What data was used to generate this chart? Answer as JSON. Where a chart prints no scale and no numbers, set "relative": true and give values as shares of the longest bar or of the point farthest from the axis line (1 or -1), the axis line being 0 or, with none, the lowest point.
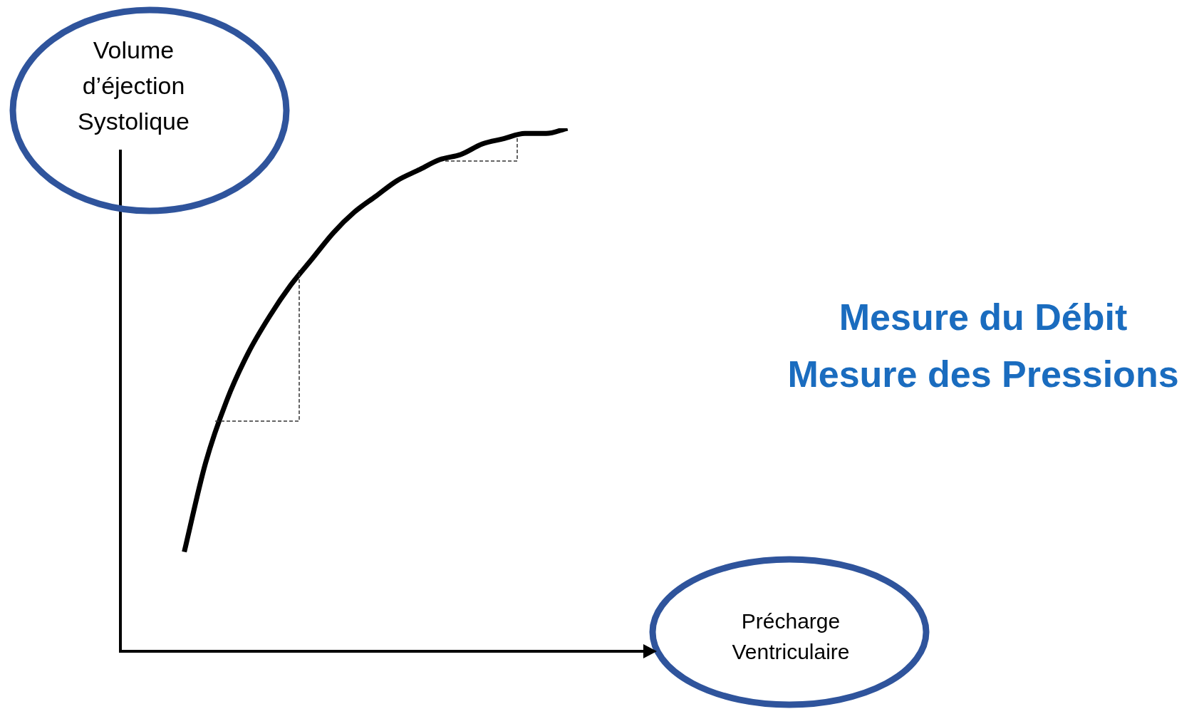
{
  "chart_data": {
    "type": "line",
    "relative": true,
    "xlabel": "Précharge Ventriculaire",
    "ylabel": "Volume d’éjection Systolique",
    "annotations": [
      "Mesure du Débit",
      "Mesure des Pressions"
    ],
    "categories": [
      null,
      null,
      null,
      null,
      null,
      null,
      null,
      null,
      null,
      null,
      null,
      null,
      null,
      null,
      null,
      null,
      null,
      null,
      null,
      null,
      null,
      null,
      null,
      null,
      null,
      null
    ],
    "series": [
      {
        "color": "#000000",
        "values": [
          null,
          null,
          null,
          0.19,
          0.36,
          0.48,
          0.57,
          0.64,
          0.7,
          0.75,
          0.8,
          0.84,
          0.87,
          0.9,
          0.92,
          0.94,
          0.95,
          0.97,
          0.98,
          0.99,
          0.99,
          1,
          null,
          null,
          null,
          null
        ]
      }
    ],
    "legend": false
  }
}
